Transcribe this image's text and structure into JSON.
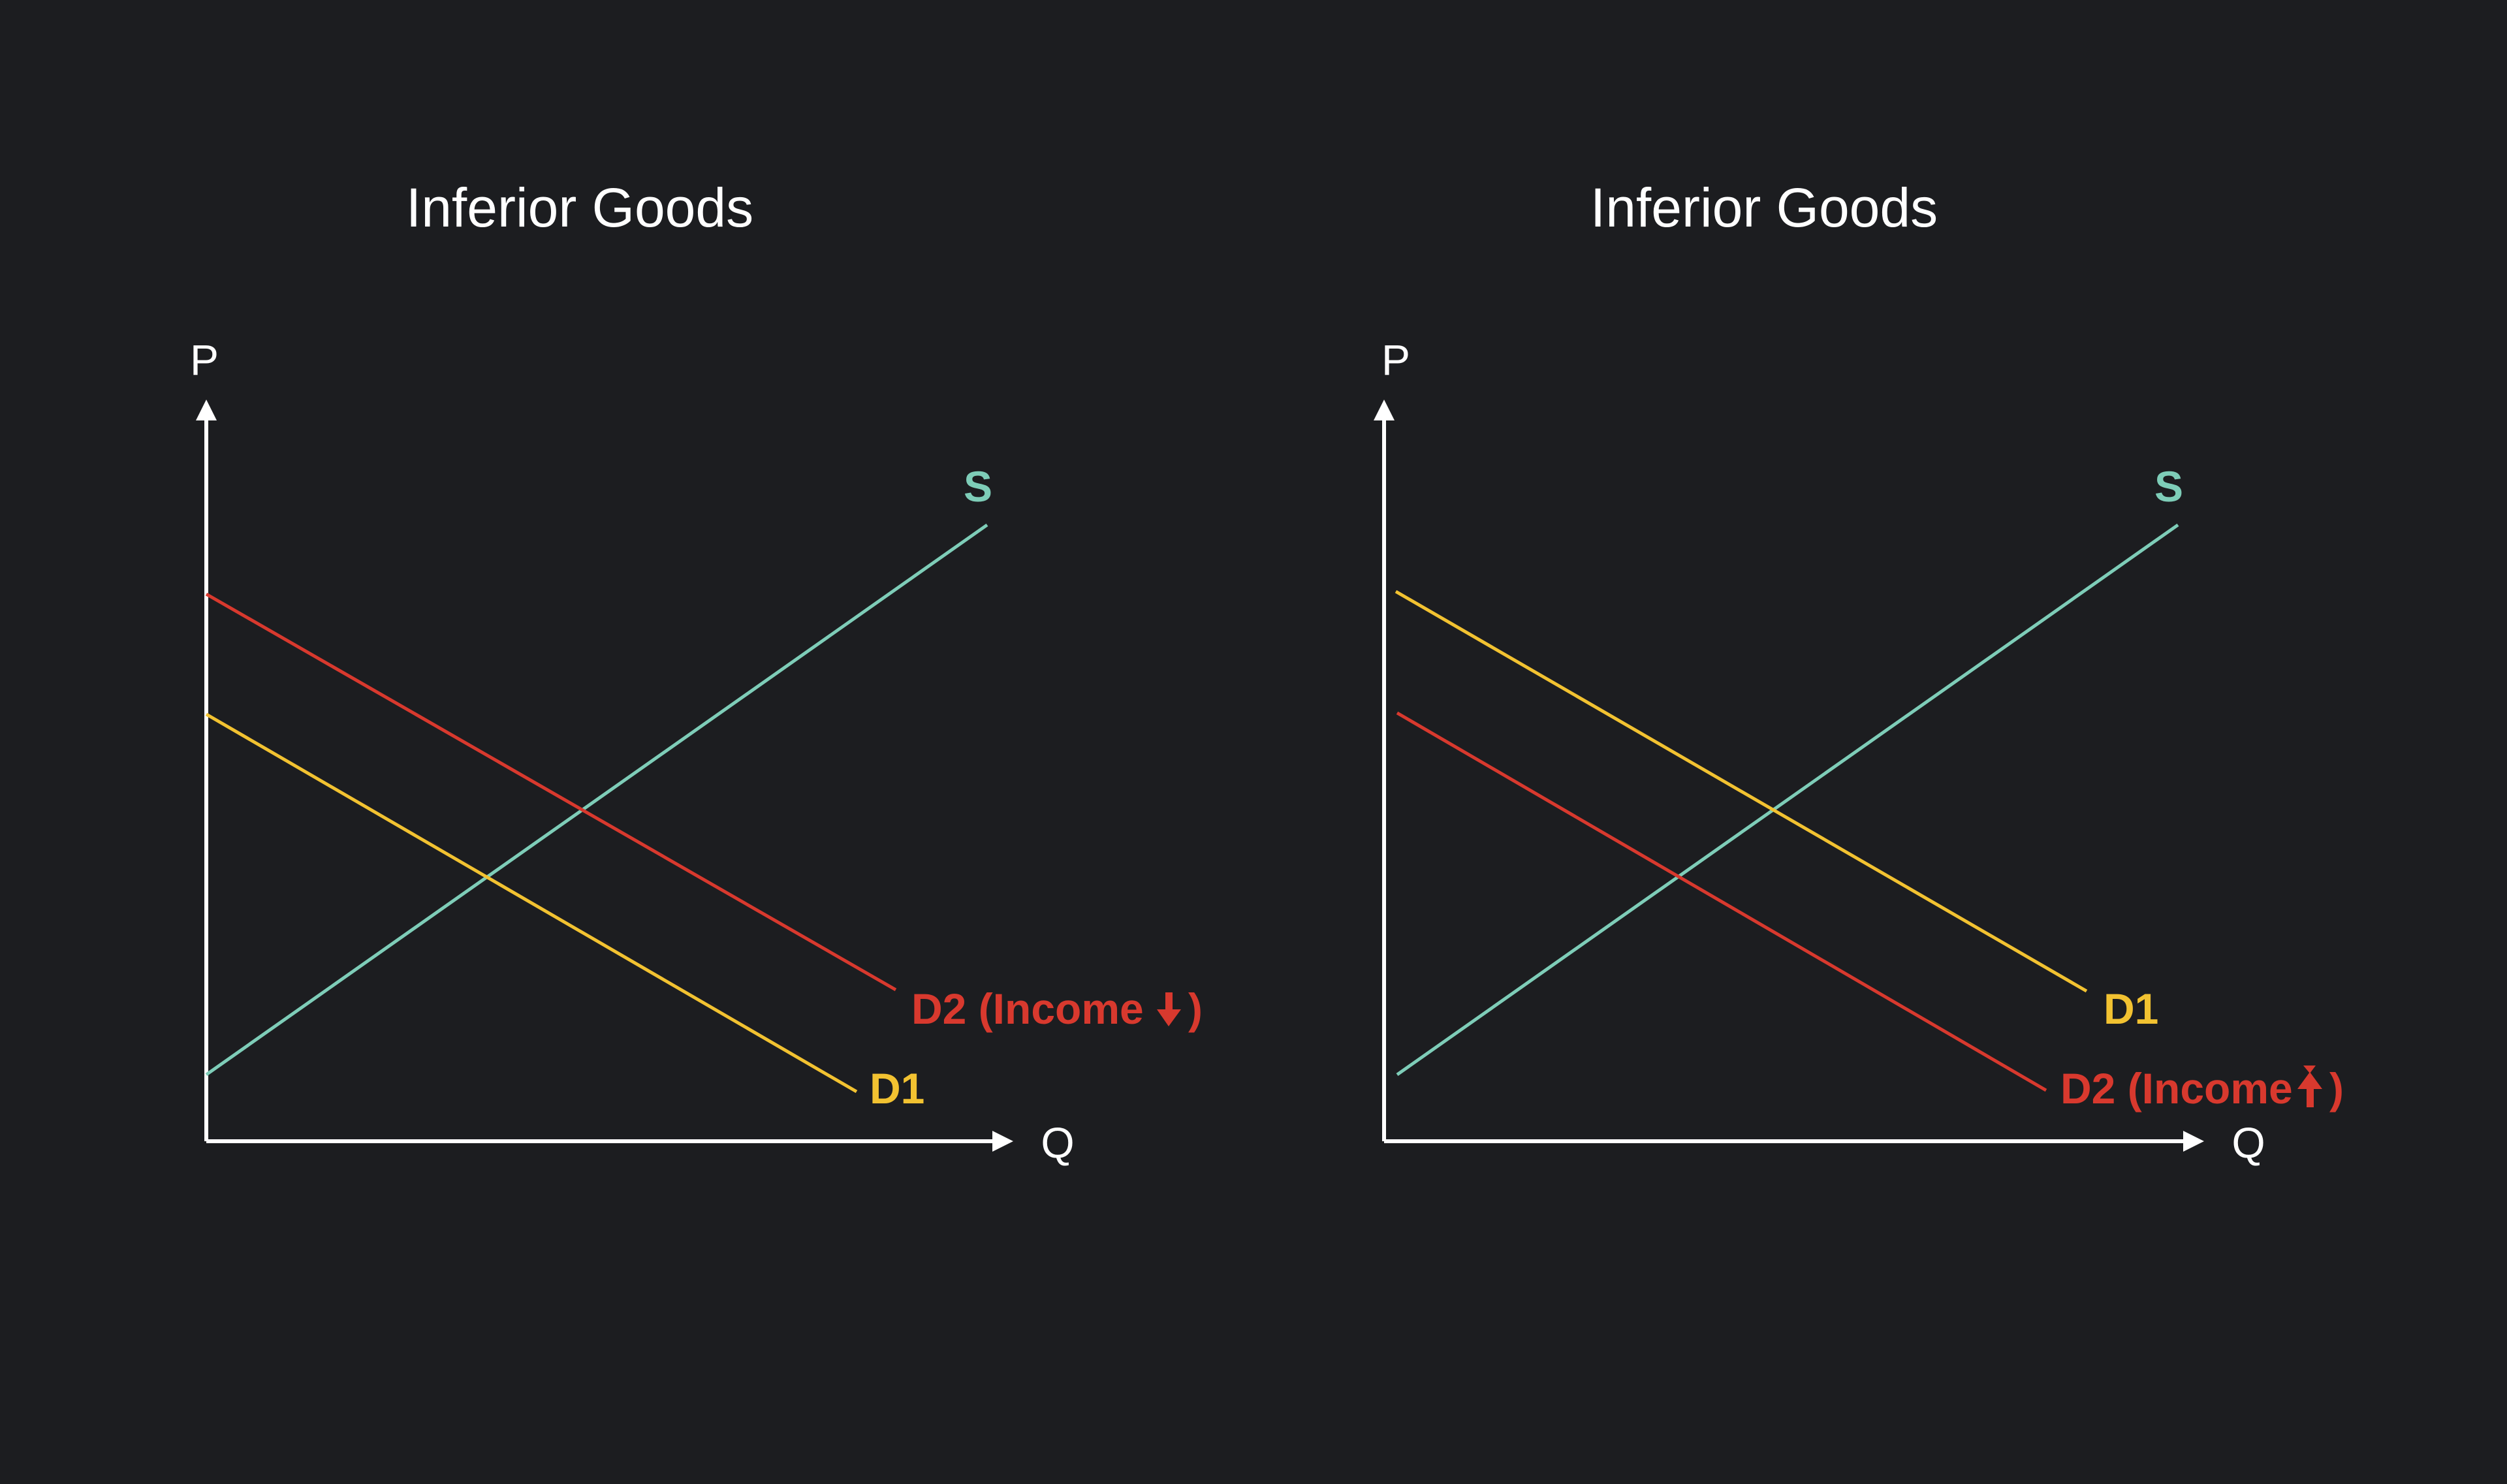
{
  "colors": {
    "background": "#1c1d20",
    "axis": "#ffffff",
    "text": "#ffffff",
    "supply": "#7ecdb8",
    "demand_1": "#f2c231",
    "demand_2": "#d8392e"
  },
  "diagrams": [
    {
      "title": "Inferior Goods",
      "y_axis_label": "P",
      "x_axis_label": "Q",
      "supply_label": "S",
      "demand_1_label": "D1",
      "demand_2_label": "D2 (Income",
      "demand_2_arrow": "down-arrow-icon",
      "demand_2_close": ")"
    },
    {
      "title": "Inferior Goods",
      "y_axis_label": "P",
      "x_axis_label": "Q",
      "supply_label": "S",
      "demand_1_label": "D1",
      "demand_2_label": "D2 (Income",
      "demand_2_arrow": "up-arrow-icon",
      "demand_2_close": ")"
    }
  ]
}
